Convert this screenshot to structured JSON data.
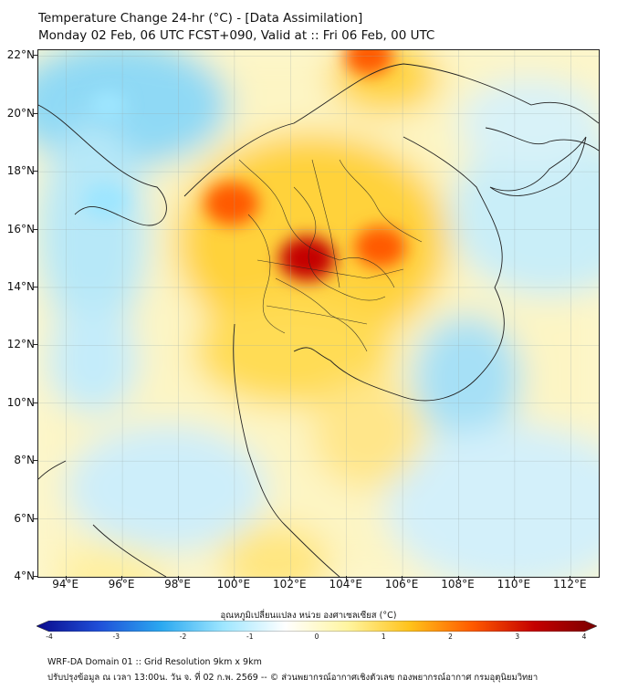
{
  "title": {
    "line1": "Temperature Change 24-hr (°C) - [Data Assimilation]",
    "line2": "Monday 02 Feb, 06 UTC FCST+090, Valid at :: Fri 06 Feb, 00 UTC"
  },
  "map": {
    "lat_labels": [
      "22°N",
      "20°N",
      "18°N",
      "16°N",
      "14°N",
      "12°N",
      "10°N",
      "8°N",
      "6°N",
      "4°N"
    ],
    "lat_values": [
      22,
      20,
      18,
      16,
      14,
      12,
      10,
      8,
      6,
      4
    ],
    "lon_labels": [
      "94°E",
      "96°E",
      "98°E",
      "100°E",
      "102°E",
      "104°E",
      "106°E",
      "108°E",
      "110°E",
      "112°E"
    ],
    "lon_values": [
      94,
      96,
      98,
      100,
      102,
      104,
      106,
      108,
      110,
      112
    ],
    "lon_range": [
      93,
      113
    ],
    "lat_range": [
      4,
      22.2
    ],
    "hotspots": [
      {
        "lon": 102.6,
        "lat": 15.0,
        "delta": 2.8
      },
      {
        "lon": 99.9,
        "lat": 16.9,
        "delta": 2.6
      },
      {
        "lon": 105.2,
        "lat": 15.4,
        "delta": 2.4
      },
      {
        "lon": 104.8,
        "lat": 22.0,
        "delta": 2.1
      },
      {
        "lon": 95.4,
        "lat": 17.0,
        "delta": -1.7
      },
      {
        "lon": 95.5,
        "lat": 20.3,
        "delta": -0.9
      }
    ]
  },
  "colorbar": {
    "label": "อุณหภูมิเปลี่ยนแปลง หน่วย องศาเซลเซียส (°C)",
    "ticks": [
      "-4",
      "-3",
      "-2",
      "-1",
      "0",
      "1",
      "2",
      "3",
      "4"
    ],
    "tick_values": [
      -4,
      -3,
      -2,
      -1,
      0,
      1,
      2,
      3,
      4
    ],
    "colors": [
      "#0a0a8c",
      "#1f4fd8",
      "#2aa8f0",
      "#9ee6ff",
      "#ffffff",
      "#fff5a0",
      "#ffc21a",
      "#ff5a00",
      "#c40000",
      "#7a0000"
    ]
  },
  "footer": {
    "line1": "WRF-DA Domain 01 :: Grid Resolution 9km x 9km",
    "line2": "ปรับปรุงข้อมูล ณ เวลา 13:00น. วัน จ. ที่ 02 ก.พ. 2569 -- © ส่วนพยากรณ์อากาศเชิงตัวเลข กองพยากรณ์อากาศ กรมอุตุนิยมวิทยา"
  }
}
